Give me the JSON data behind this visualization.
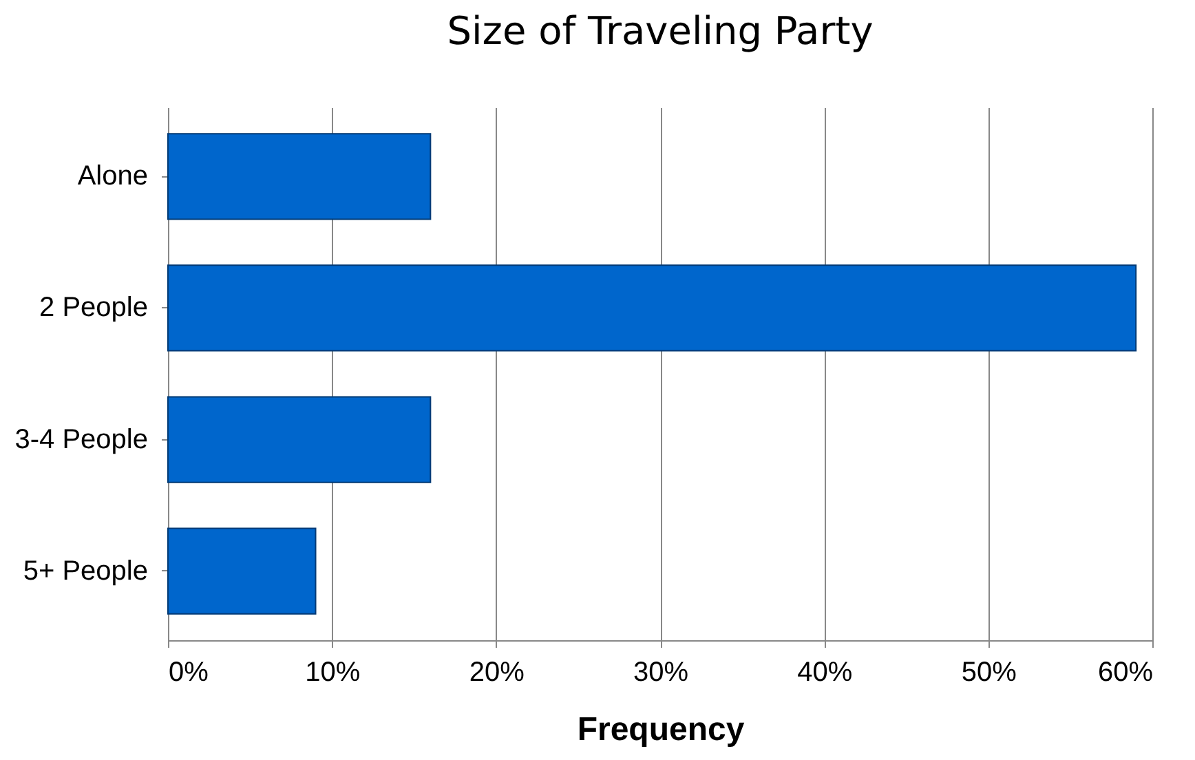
{
  "chart_data": {
    "type": "bar",
    "orientation": "horizontal",
    "title": "Size of Traveling Party",
    "xlabel": "Frequency",
    "categories": [
      "Alone",
      "2 People",
      "3-4 People",
      "5+ People"
    ],
    "values": [
      16,
      59,
      16,
      9
    ],
    "color": "#0066cc",
    "xlim": [
      0,
      60
    ],
    "xticks": [
      {
        "value": 0,
        "label": "0%"
      },
      {
        "value": 10,
        "label": "10%"
      },
      {
        "value": 20,
        "label": "20%"
      },
      {
        "value": 30,
        "label": "30%"
      },
      {
        "value": 40,
        "label": "40%"
      },
      {
        "value": 50,
        "label": "50%"
      },
      {
        "value": 60,
        "label": "60%"
      }
    ],
    "grid": "x"
  }
}
